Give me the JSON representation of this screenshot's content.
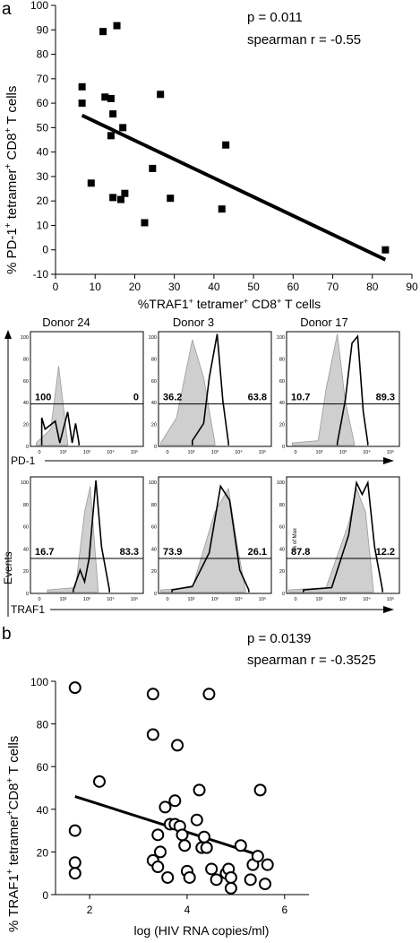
{
  "panel_a": {
    "letter": "a",
    "stats": {
      "p": "p = 0.011",
      "r": "spearman r = -0.55"
    },
    "chart_data": {
      "type": "scatter",
      "xlabel": "%TRAF1+ tetramer+ CD8+ T cells",
      "ylabel": "% PD-1+ tetramer+ CD8+ T cells",
      "xlim": [
        0,
        90
      ],
      "ylim": [
        -10,
        100
      ],
      "x_ticks": [
        "0",
        "10",
        "20",
        "30",
        "40",
        "50",
        "60",
        "70",
        "80",
        "90"
      ],
      "y_ticks": [
        "-10",
        "0",
        "10",
        "20",
        "30",
        "40",
        "50",
        "60",
        "70",
        "80",
        "90",
        "100"
      ],
      "marker": "square",
      "points": [
        [
          6.7,
          66.7
        ],
        [
          6.7,
          60
        ],
        [
          9,
          27.3
        ],
        [
          12,
          89.3
        ],
        [
          12.5,
          62.5
        ],
        [
          14,
          61.9
        ],
        [
          14,
          46.7
        ],
        [
          14.5,
          55.6
        ],
        [
          14.5,
          21.4
        ],
        [
          15.5,
          91.7
        ],
        [
          16.5,
          20.6
        ],
        [
          17,
          50
        ],
        [
          17.5,
          23.1
        ],
        [
          22.5,
          11.1
        ],
        [
          24.5,
          33.3
        ],
        [
          26.5,
          63.6
        ],
        [
          29,
          21.1
        ],
        [
          42,
          16.7
        ],
        [
          43,
          42.9
        ],
        [
          83.3,
          0
        ]
      ],
      "fit_line": [
        [
          6.7,
          55
        ],
        [
          83.3,
          -4
        ]
      ]
    }
  },
  "flow": {
    "donors": [
      "Donor 24",
      "Donor 3",
      "Donor 17"
    ],
    "y_axis_label": "Events",
    "pct_max_label": "% of Max",
    "row1": {
      "marker": "PD-1",
      "pcts": [
        [
          "100",
          "0"
        ],
        [
          "36.2",
          "63.8"
        ],
        [
          "10.7",
          "89.3"
        ]
      ]
    },
    "row2": {
      "marker": "TRAF1",
      "pcts": [
        [
          "16.7",
          "83.3"
        ],
        [
          "73.9",
          "26.1"
        ],
        [
          "87.8",
          "12.2"
        ]
      ]
    },
    "x_ticks": [
      "0",
      "10²",
      "10³",
      "10⁴",
      "10⁵"
    ],
    "y_ticks": [
      "0",
      "20",
      "40",
      "60",
      "80",
      "100"
    ]
  },
  "panel_b": {
    "letter": "b",
    "stats": {
      "p": "p = 0.0139",
      "r": "spearman r = -0.3525"
    },
    "chart_data": {
      "type": "scatter",
      "xlabel": "log (HIV RNA copies/ml)",
      "ylabel": "% TRAF1+ tetramer+ CD8+ T cells",
      "xlim": [
        1.3,
        6.5
      ],
      "ylim": [
        0,
        100
      ],
      "x_ticks": [
        "2",
        "4",
        "6"
      ],
      "y_ticks": [
        "0",
        "20",
        "40",
        "60",
        "80",
        "100"
      ],
      "marker": "circle",
      "points": [
        [
          1.7,
          97
        ],
        [
          1.7,
          30
        ],
        [
          1.7,
          15
        ],
        [
          1.7,
          10
        ],
        [
          2.2,
          53
        ],
        [
          3.3,
          94
        ],
        [
          3.3,
          75
        ],
        [
          3.3,
          16
        ],
        [
          3.4,
          13
        ],
        [
          3.4,
          28
        ],
        [
          3.45,
          20
        ],
        [
          3.55,
          41
        ],
        [
          3.6,
          8
        ],
        [
          3.65,
          33
        ],
        [
          3.75,
          33
        ],
        [
          3.75,
          44
        ],
        [
          3.8,
          70
        ],
        [
          3.85,
          32
        ],
        [
          3.9,
          28
        ],
        [
          3.95,
          23
        ],
        [
          4.0,
          11
        ],
        [
          4.05,
          8
        ],
        [
          4.2,
          35
        ],
        [
          4.25,
          49
        ],
        [
          4.3,
          22
        ],
        [
          4.35,
          27
        ],
        [
          4.4,
          22
        ],
        [
          4.45,
          94
        ],
        [
          4.5,
          12
        ],
        [
          4.6,
          7
        ],
        [
          4.8,
          10
        ],
        [
          4.85,
          12
        ],
        [
          4.9,
          8
        ],
        [
          4.9,
          3
        ],
        [
          5.1,
          23
        ],
        [
          5.3,
          7
        ],
        [
          5.35,
          14
        ],
        [
          5.45,
          18
        ],
        [
          5.5,
          49
        ],
        [
          5.6,
          5
        ],
        [
          5.65,
          14
        ]
      ],
      "fit_line": [
        [
          1.7,
          46
        ],
        [
          5.55,
          18
        ]
      ]
    }
  }
}
